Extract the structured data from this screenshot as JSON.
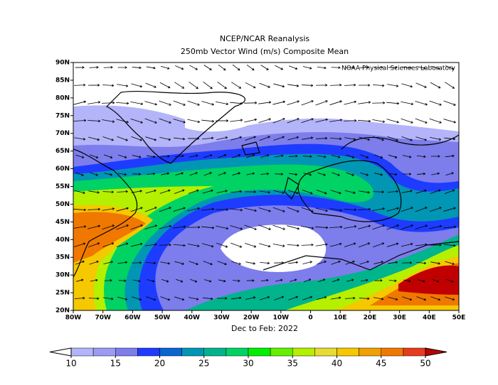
{
  "header": {
    "title": "NCEP/NCAR Reanalysis",
    "subtitle": "250mb Vector Wind (m/s) Composite Mean"
  },
  "map": {
    "credit": "NOAA Physical Sciences Laboratory",
    "lat_labels": [
      "90N",
      "85N",
      "80N",
      "75N",
      "70N",
      "65N",
      "60N",
      "55N",
      "50N",
      "45N",
      "40N",
      "35N",
      "30N",
      "25N",
      "20N"
    ],
    "lon_labels": [
      "80W",
      "70W",
      "60W",
      "50W",
      "40W",
      "30W",
      "20W",
      "10W",
      "0",
      "10E",
      "20E",
      "30E",
      "40E",
      "50E"
    ],
    "period": "Dec to Feb: 2022"
  },
  "colorbar": {
    "levels": [
      10,
      15,
      20,
      25,
      30,
      35,
      40,
      45,
      50
    ],
    "colors": [
      "#b4b4fa",
      "#9b9bf5",
      "#7d7deb",
      "#1e3cff",
      "#0a64d2",
      "#0096b4",
      "#00b48c",
      "#00d264",
      "#00f000",
      "#64f000",
      "#b4f000",
      "#e6dc32",
      "#f5c800",
      "#f0a000",
      "#f07800",
      "#e63c1e"
    ],
    "under_color": "#ffffff",
    "over_color": "#c00000"
  }
}
